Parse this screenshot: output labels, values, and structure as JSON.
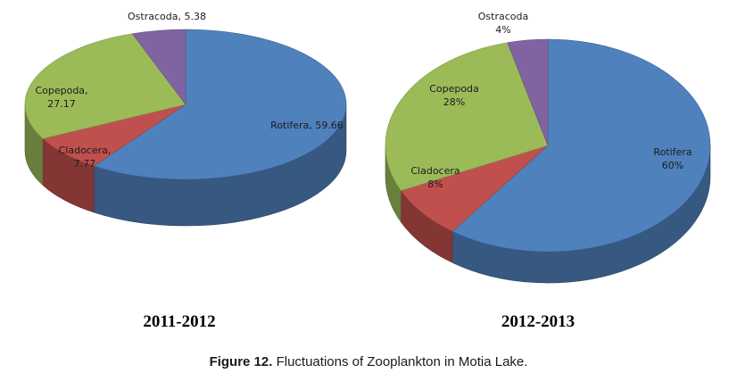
{
  "figure": {
    "caption_prefix": "Figure 12.",
    "caption_text": " Fluctuations of Zooplankton in Motia Lake."
  },
  "chart_data": [
    {
      "type": "pie",
      "title": "2011-2012",
      "categories": [
        "Rotifera",
        "Cladocera",
        "Copepoda",
        "Ostracoda"
      ],
      "values": [
        59.66,
        7.77,
        27.17,
        5.38
      ],
      "labels": [
        [
          "Rotifera, 59.66"
        ],
        [
          "Cladocera,",
          "7.77"
        ],
        [
          "Copepoda,",
          "27.17"
        ],
        [
          "Ostracoda, 5.38"
        ]
      ],
      "colors": [
        "#4f81bd",
        "#c0504d",
        "#9bbb59",
        "#8064a2"
      ],
      "style": "3d"
    },
    {
      "type": "pie",
      "title": "2012-2013",
      "categories": [
        "Rotifera",
        "Cladocera",
        "Copepoda",
        "Ostracoda"
      ],
      "values": [
        60,
        8,
        28,
        4
      ],
      "labels": [
        [
          "Rotifera",
          "60%"
        ],
        [
          "Cladocera",
          "8%"
        ],
        [
          "Copepoda",
          "28%"
        ],
        [
          "Ostracoda",
          "4%"
        ]
      ],
      "colors": [
        "#4f81bd",
        "#c0504d",
        "#9bbb59",
        "#8064a2"
      ],
      "style": "3d"
    }
  ]
}
